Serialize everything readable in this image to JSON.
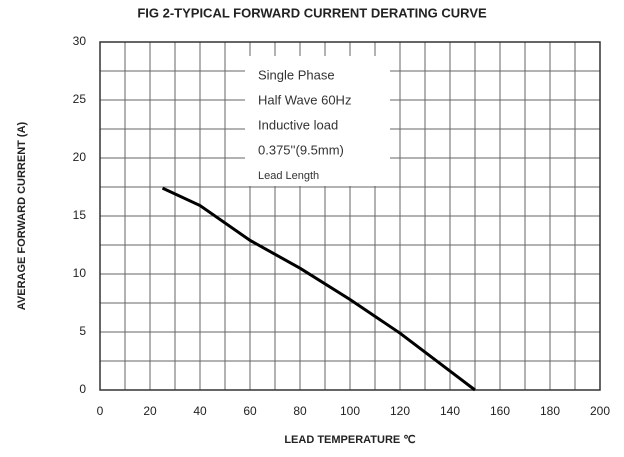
{
  "chart_data": {
    "type": "line",
    "title": "FIG 2-TYPICAL FORWARD CURRENT DERATING CURVE",
    "x_label": "LEAD TEMPERATURE  ℃",
    "y_label": "AVERAGE FORWARD CURRENT (A)",
    "annotation": [
      "Single Phase",
      "Half Wave 60Hz",
      "Inductive load",
      "0.375''(9.5mm)",
      "Lead Length"
    ],
    "x": [
      25,
      40,
      60,
      80,
      100,
      120,
      150
    ],
    "series": [
      {
        "name": "Derating",
        "color": "#000000",
        "values": [
          17.4,
          15.9,
          12.9,
          10.5,
          7.8,
          4.9,
          0
        ]
      }
    ],
    "xlim": [
      0,
      200
    ],
    "xticks": [
      0,
      20,
      40,
      60,
      80,
      100,
      120,
      140,
      160,
      180,
      200
    ],
    "ylim": [
      0,
      30
    ],
    "yticks": [
      0,
      5,
      10,
      15,
      20,
      25,
      30
    ],
    "x_minor_grid": [
      10,
      30,
      50,
      70,
      90,
      110,
      130,
      150,
      170,
      190
    ],
    "y_minor_grid": [
      2.5,
      7.5,
      12.5,
      17.5,
      22.5,
      27.5
    ],
    "grid": true
  }
}
